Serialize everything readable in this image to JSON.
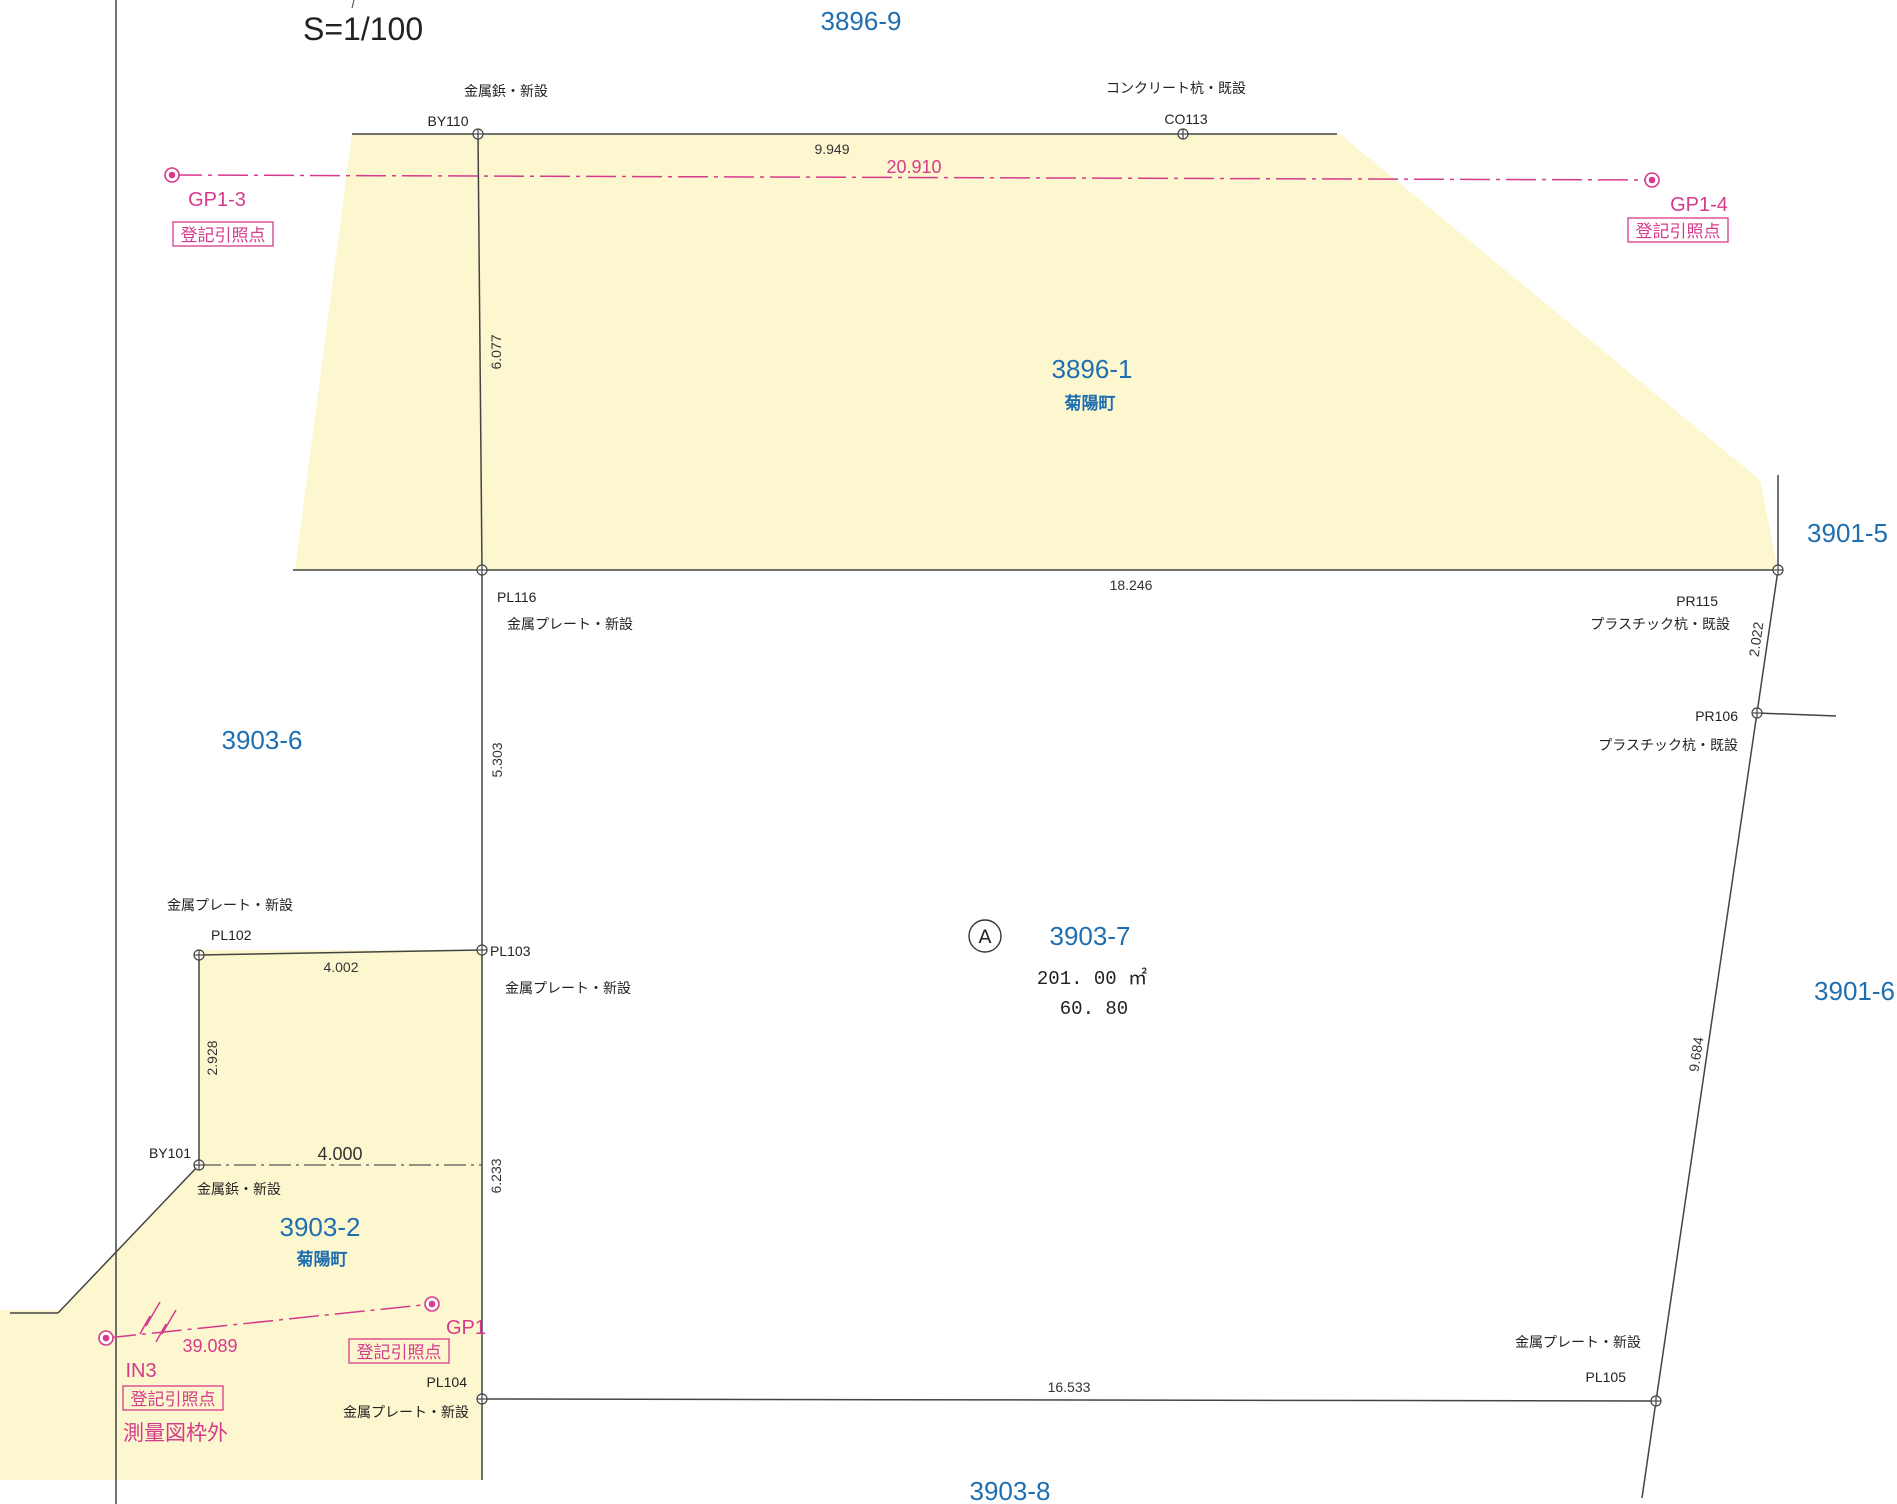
{
  "scale": "S=1/100",
  "parcels": {
    "p3896_9": "3896-9",
    "p3896_1": "3896-1",
    "p3896_1_town": "菊陽町",
    "p3901_5": "3901-5",
    "p3901_6": "3901-6",
    "p3903_6": "3903-6",
    "p3903_7": "3903-7",
    "p3903_7_area": "201. 00 ㎡",
    "p3903_7_area2": "60. 80",
    "p3903_2": "3903-2",
    "p3903_2_town": "菊陽町",
    "p3903_8": "3903-8",
    "symbol_a": "A"
  },
  "points": {
    "by110": "BY110",
    "by110_desc": "金属鋲・新設",
    "co113": "CO113",
    "co113_desc": "コンクリート杭・既設",
    "pl116": "PL116",
    "pl116_desc": "金属プレート・新設",
    "pr115": "PR115",
    "pr115_desc": "プラスチック杭・既設",
    "pr106": "PR106",
    "pr106_desc": "プラスチック杭・既設",
    "pl102": "PL102",
    "pl102_desc": "金属プレート・新設",
    "pl103": "PL103",
    "pl103_desc": "金属プレート・新設",
    "by101": "BY101",
    "by101_desc": "金属鋲・新設",
    "pl104": "PL104",
    "pl104_desc": "金属プレート・新設",
    "pl105": "PL105",
    "pl105_desc": "金属プレート・新設"
  },
  "dimensions": {
    "d9949": "9.949",
    "d6077": "6.077",
    "d18246": "18.246",
    "d2022": "2.022",
    "d5303": "5.303",
    "d4002": "4.002",
    "d2928": "2.928",
    "d4000": "4.000",
    "d6233": "6.233",
    "d9684": "9.684",
    "d16533": "16.533"
  },
  "reference_points": {
    "gp1_3": "GP1-3",
    "gp1_4": "GP1-4",
    "gp1": "GP1",
    "in3": "IN3",
    "ref_label": "登記引照点",
    "d20910": "20.910",
    "d39089": "39.089",
    "outside_frame": "測量図枠外"
  },
  "colors": {
    "parcel_label": "#1f6fb0",
    "reference": "#d63a8c",
    "highlight_fill": "#fdf7cf"
  }
}
